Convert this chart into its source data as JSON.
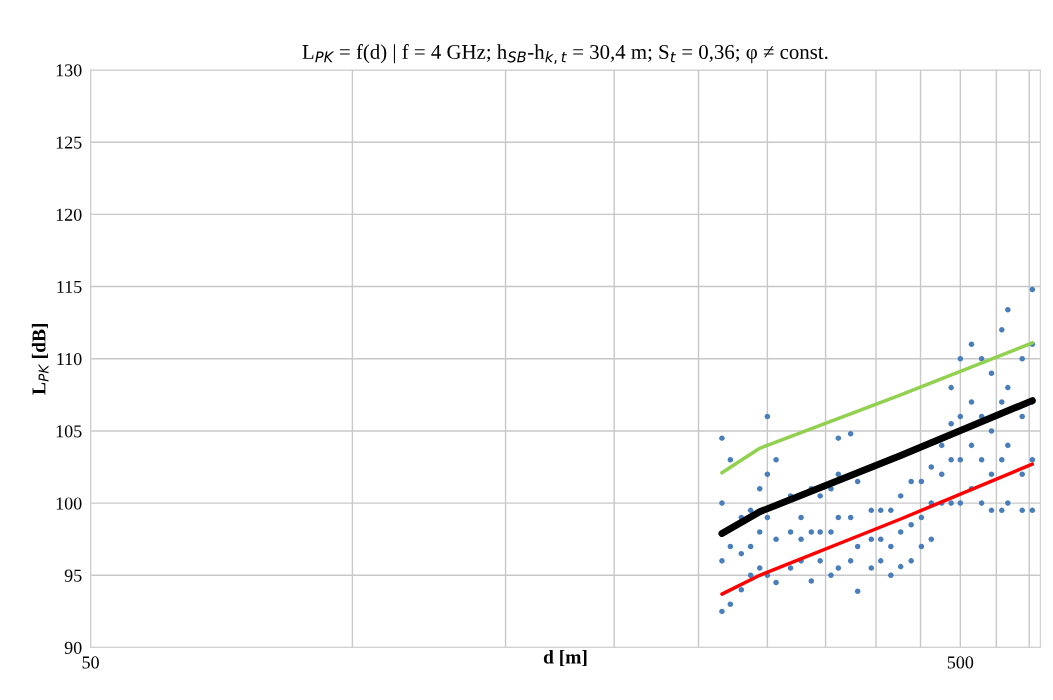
{
  "chart_data": {
    "type": "scatter",
    "title": "L$_{PK}$ = f(d) | f = 4 GHz; h$_{SB}$-h$_{k,t}$ = 30,4 m; S$_{t}$ = 0,36; φ ≠ const.",
    "xlabel": "d [m]",
    "ylabel": "L$_{PK}$ [dB]",
    "log": "x",
    "xlim": [
      50,
      618
    ],
    "xticks": [
      50,
      {
        "value": 100,
        "label": null
      },
      {
        "value": 150,
        "label": null
      },
      {
        "value": 200,
        "label": null
      },
      {
        "value": 250,
        "label": null
      },
      {
        "value": 300,
        "label": null
      },
      {
        "value": 350,
        "label": null
      },
      {
        "value": 400,
        "label": null
      },
      {
        "value": 450,
        "label": null
      },
      500,
      {
        "value": 550,
        "label": null
      },
      {
        "value": 600,
        "label": null
      }
    ],
    "ylim": [
      90,
      130
    ],
    "yticks": [
      90,
      95,
      100,
      105,
      110,
      115,
      120,
      125,
      130
    ],
    "grid": true,
    "legend": false,
    "marker": "circle",
    "series": [
      {
        "color": "#4a7ebb",
        "x": [
          266,
          266,
          266,
          266,
          272,
          272,
          272,
          280,
          280,
          280,
          287,
          287,
          287,
          294,
          294,
          294,
          300,
          300,
          300,
          300,
          307,
          307,
          307,
          319,
          319,
          319,
          328,
          328,
          328,
          337,
          337,
          337,
          345,
          345,
          345,
          355,
          355,
          355,
          362,
          362,
          362,
          362,
          374,
          374,
          374,
          381,
          381,
          381,
          395,
          395,
          395,
          405,
          405,
          405,
          416,
          416,
          416,
          427,
          427,
          427,
          439,
          439,
          439,
          451,
          451,
          451,
          463,
          463,
          463,
          476,
          476,
          476,
          488,
          488,
          488,
          488,
          500,
          500,
          500,
          500,
          515,
          515,
          515,
          515,
          529,
          529,
          529,
          529,
          543,
          543,
          543,
          543,
          558,
          558,
          558,
          558,
          567,
          567,
          567,
          567,
          589,
          589,
          589,
          589,
          605,
          605,
          605,
          605,
          605
        ],
        "values": [
          92.5,
          96,
          100,
          104.5,
          93,
          97,
          103,
          94,
          96.5,
          99,
          95,
          97,
          99.5,
          95.5,
          98,
          101,
          95,
          99,
          102,
          106,
          94.5,
          97.5,
          103,
          95.5,
          98,
          100.5,
          96,
          97.5,
          99,
          94.6,
          98,
          101,
          96,
          98,
          100.5,
          95,
          98,
          101,
          95.5,
          99,
          102,
          104.5,
          96,
          99,
          104.8,
          93.9,
          97,
          101.5,
          95.5,
          97.5,
          99.5,
          96,
          97.5,
          99.5,
          95,
          97,
          99.5,
          95.6,
          98,
          100.5,
          96,
          98.5,
          101.5,
          97,
          99,
          101.5,
          97.5,
          100,
          102.5,
          100,
          102,
          104,
          100,
          103,
          105.5,
          108,
          100,
          103,
          106,
          110,
          101,
          104,
          107,
          111,
          100,
          103,
          106,
          110,
          99.5,
          102,
          105,
          109,
          99.5,
          103,
          107,
          112,
          100,
          104,
          108,
          113.4,
          99.5,
          102,
          106,
          110,
          99.5,
          103,
          107,
          111,
          114.8
        ]
      },
      {
        "type": "line",
        "color": "#92d050",
        "marker": "none",
        "x": [
          266,
          294,
          427,
          605
        ],
        "values": [
          102.1,
          103.8,
          107.5,
          111.1
        ]
      },
      {
        "type": "line",
        "color": "#000000",
        "marker": "none",
        "x": [
          266,
          294,
          427,
          605
        ],
        "values": [
          97.9,
          99.4,
          103.3,
          107.1
        ]
      },
      {
        "type": "line",
        "color": "#ff0000",
        "marker": "none",
        "x": [
          266,
          294,
          427,
          605
        ],
        "values": [
          93.7,
          95.0,
          98.9,
          102.7
        ]
      }
    ]
  }
}
